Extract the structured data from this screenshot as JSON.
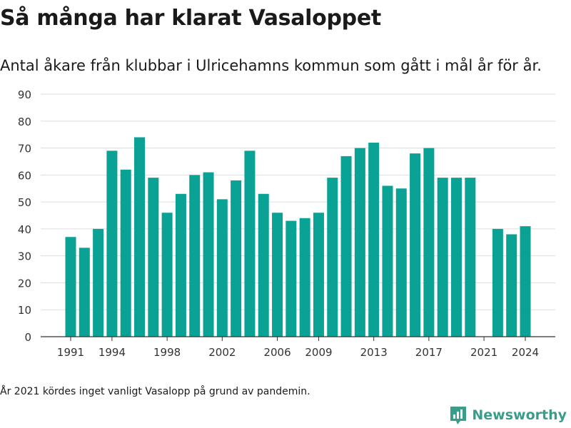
{
  "header": {
    "title": "Så många har klarat Vasaloppet",
    "subtitle": "Antal åkare från klubbar i Ulricehamns kommun som gått i mål år för år."
  },
  "footnote": "År 2021 kördes inget vanligt Vasalopp på grund av pandemin.",
  "brand": {
    "name": "Newsworthy",
    "icon": "newsworthy-logo-icon",
    "color": "#3a9d8c"
  },
  "colors": {
    "bar": "#0aa294",
    "grid": "#dddddd",
    "axis": "#333333"
  },
  "chart_data": {
    "type": "bar",
    "x": [
      1991,
      1992,
      1993,
      1994,
      1995,
      1996,
      1997,
      1998,
      1999,
      2000,
      2001,
      2002,
      2003,
      2004,
      2005,
      2006,
      2007,
      2008,
      2009,
      2010,
      2011,
      2012,
      2013,
      2014,
      2015,
      2016,
      2017,
      2018,
      2019,
      2020,
      2021,
      2022,
      2023,
      2024
    ],
    "values": [
      37,
      33,
      40,
      69,
      62,
      74,
      59,
      46,
      53,
      60,
      61,
      51,
      58,
      69,
      53,
      46,
      43,
      44,
      46,
      59,
      67,
      70,
      72,
      56,
      55,
      68,
      70,
      59,
      59,
      59,
      null,
      40,
      38,
      41
    ],
    "x_ticks": [
      1991,
      1994,
      1998,
      2002,
      2006,
      2009,
      2013,
      2017,
      2021,
      2024
    ],
    "y_ticks": [
      0,
      10,
      20,
      30,
      40,
      50,
      60,
      70,
      80,
      90
    ],
    "ylim": [
      0,
      90
    ],
    "grid": true
  }
}
